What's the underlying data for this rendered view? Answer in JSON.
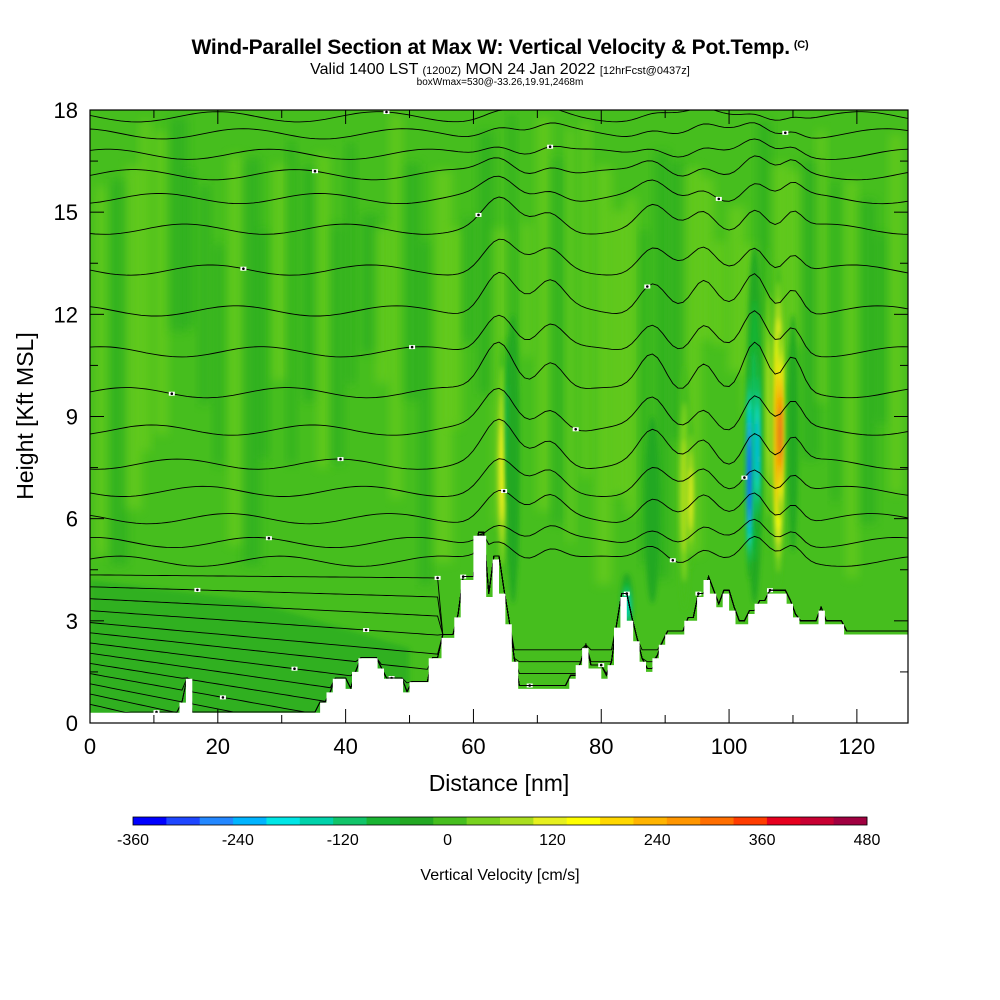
{
  "chart_data": {
    "type": "heatmap",
    "title": "Wind-Parallel Section at Max W: Vertical Velocity & Pot.Temp.",
    "title_mark": "(C)",
    "subtitle_main": "Valid 1400 LST",
    "subtitle_zulu": "(1200Z)",
    "subtitle_date": "MON 24 Jan 2022",
    "subtitle_fcst": "[12hrFcst@0437z]",
    "subtitle2": "boxWmax=530@-33.26,19.91,2468m",
    "xlabel": "Distance [nm]",
    "ylabel": "Height [Kft MSL]",
    "xlim": [
      0,
      128
    ],
    "ylim": [
      0,
      18
    ],
    "xticks": [
      "0",
      "20",
      "40",
      "60",
      "80",
      "100",
      "120"
    ],
    "yticks": [
      "0",
      "3",
      "6",
      "9",
      "12",
      "15",
      "18"
    ],
    "colorbar": {
      "label": "Vertical Velocity [cm/s]",
      "min": -360,
      "max": 480,
      "step": 40,
      "ticks": [
        "-360",
        "-240",
        "-120",
        "0",
        "120",
        "240",
        "360",
        "480"
      ],
      "colors": [
        "#0000ff",
        "#1e46ff",
        "#2387ff",
        "#00b4ff",
        "#00e6e6",
        "#00d2aa",
        "#11c469",
        "#19b432",
        "#23a823",
        "#46be1e",
        "#78d21e",
        "#aade1e",
        "#e6f01e",
        "#ffff00",
        "#ffd700",
        "#ffb400",
        "#ff9600",
        "#ff6e00",
        "#ff3c00",
        "#e6001e",
        "#c80032",
        "#a00040"
      ]
    },
    "terrain_kft": [
      [
        0,
        0.3
      ],
      [
        14,
        0.3
      ],
      [
        14,
        0.6
      ],
      [
        15,
        0.6
      ],
      [
        15,
        1.3
      ],
      [
        16,
        1.3
      ],
      [
        16,
        0.3
      ],
      [
        36,
        0.3
      ],
      [
        36,
        0.6
      ],
      [
        37,
        0.6
      ],
      [
        37,
        0.9
      ],
      [
        38,
        0.9
      ],
      [
        38,
        1.3
      ],
      [
        40,
        1.3
      ],
      [
        40,
        1.0
      ],
      [
        41,
        1.0
      ],
      [
        41,
        1.5
      ],
      [
        42,
        1.5
      ],
      [
        42,
        1.9
      ],
      [
        45,
        1.9
      ],
      [
        45,
        1.6
      ],
      [
        46,
        1.6
      ],
      [
        46,
        1.3
      ],
      [
        49,
        1.3
      ],
      [
        49,
        0.9
      ],
      [
        50,
        0.9
      ],
      [
        50,
        1.2
      ],
      [
        53,
        1.2
      ],
      [
        53,
        1.9
      ],
      [
        55,
        1.9
      ],
      [
        55,
        2.5
      ],
      [
        57,
        2.5
      ],
      [
        57,
        3.1
      ],
      [
        58,
        3.1
      ],
      [
        58,
        4.2
      ],
      [
        60,
        4.2
      ],
      [
        60,
        5.5
      ],
      [
        62,
        5.5
      ],
      [
        62,
        3.7
      ],
      [
        63,
        3.7
      ],
      [
        63,
        4.8
      ],
      [
        64,
        4.8
      ],
      [
        64,
        3.8
      ],
      [
        65,
        3.8
      ],
      [
        65,
        2.9
      ],
      [
        66,
        2.9
      ],
      [
        66,
        1.8
      ],
      [
        67,
        1.8
      ],
      [
        67,
        1.0
      ],
      [
        75,
        1.0
      ],
      [
        75,
        1.3
      ],
      [
        76,
        1.3
      ],
      [
        76,
        1.7
      ],
      [
        77,
        1.7
      ],
      [
        77,
        2.2
      ],
      [
        78,
        2.2
      ],
      [
        78,
        1.6
      ],
      [
        80,
        1.6
      ],
      [
        80,
        1.3
      ],
      [
        81,
        1.3
      ],
      [
        81,
        1.7
      ],
      [
        82,
        1.7
      ],
      [
        82,
        2.8
      ],
      [
        83,
        2.8
      ],
      [
        83,
        3.7
      ],
      [
        84,
        3.7
      ],
      [
        84,
        3.0
      ],
      [
        85,
        3.0
      ],
      [
        85,
        2.4
      ],
      [
        86,
        2.4
      ],
      [
        86,
        1.8
      ],
      [
        87,
        1.8
      ],
      [
        87,
        1.5
      ],
      [
        88,
        1.5
      ],
      [
        88,
        1.9
      ],
      [
        89,
        1.9
      ],
      [
        89,
        2.3
      ],
      [
        90,
        2.3
      ],
      [
        90,
        2.6
      ],
      [
        93,
        2.6
      ],
      [
        93,
        3.0
      ],
      [
        95,
        3.0
      ],
      [
        95,
        3.7
      ],
      [
        96,
        3.7
      ],
      [
        96,
        4.2
      ],
      [
        97,
        4.2
      ],
      [
        97,
        3.8
      ],
      [
        98,
        3.8
      ],
      [
        98,
        3.4
      ],
      [
        99,
        3.4
      ],
      [
        99,
        3.8
      ],
      [
        100,
        3.8
      ],
      [
        100,
        3.3
      ],
      [
        101,
        3.3
      ],
      [
        101,
        2.9
      ],
      [
        103,
        2.9
      ],
      [
        103,
        3.2
      ],
      [
        104,
        3.2
      ],
      [
        104,
        3.5
      ],
      [
        106,
        3.5
      ],
      [
        106,
        3.8
      ],
      [
        109,
        3.8
      ],
      [
        109,
        3.5
      ],
      [
        110,
        3.5
      ],
      [
        110,
        3.1
      ],
      [
        111,
        3.1
      ],
      [
        111,
        2.9
      ],
      [
        114,
        2.9
      ],
      [
        114,
        3.3
      ],
      [
        115,
        3.3
      ],
      [
        115,
        2.9
      ],
      [
        118,
        2.9
      ],
      [
        118,
        2.6
      ],
      [
        128,
        2.6
      ]
    ],
    "w_features": [
      {
        "x": 64.5,
        "top": 11.3,
        "bottom": 4.0,
        "w": 150,
        "hw": 0.9
      },
      {
        "x": 65.6,
        "top": 11.4,
        "bottom": 6.5,
        "w": -100,
        "hw": 0.6
      },
      {
        "x": 66.2,
        "top": 12.0,
        "bottom": 3.5,
        "w": -40,
        "hw": 1.0
      },
      {
        "x": 84.0,
        "top": 4.4,
        "bottom": 2.6,
        "w": -150,
        "hw": 1.0
      },
      {
        "x": 88.0,
        "top": 9.0,
        "bottom": 3.5,
        "w": -40,
        "hw": 1.2
      },
      {
        "x": 93.0,
        "top": 10.5,
        "bottom": 3.3,
        "w": 120,
        "hw": 1.0
      },
      {
        "x": 94.0,
        "top": 9.0,
        "bottom": 4.5,
        "w": 160,
        "hw": 0.6
      },
      {
        "x": 104.0,
        "top": 14.0,
        "bottom": 3.5,
        "w": -120,
        "hw": 1.3
      },
      {
        "x": 103.2,
        "top": 10.8,
        "bottom": 4.2,
        "w": -360,
        "hw": 0.55
      },
      {
        "x": 104.4,
        "top": 11.0,
        "bottom": 5.5,
        "w": -220,
        "hw": 0.5
      },
      {
        "x": 106.2,
        "top": 14.0,
        "bottom": 5.0,
        "w": 120,
        "hw": 0.6
      },
      {
        "x": 107.7,
        "top": 13.5,
        "bottom": 4.0,
        "w": 300,
        "hw": 1.0
      },
      {
        "x": 108.0,
        "top": 11.5,
        "bottom": 6.0,
        "w": 440,
        "hw": 0.55
      },
      {
        "x": 110.0,
        "top": 12.0,
        "bottom": 5.0,
        "w": -40,
        "hw": 0.8
      }
    ],
    "theta_levels_kft": [
      0.55,
      0.85,
      1.15,
      1.45,
      1.75,
      2.05,
      2.35,
      2.65,
      2.95,
      3.3,
      3.65,
      4.0,
      4.35,
      4.75,
      5.3,
      6.0,
      6.8,
      7.6,
      8.6,
      9.7,
      10.9,
      12.1,
      13.3,
      14.5,
      15.4,
      16.1,
      16.7,
      17.3,
      17.8
    ]
  }
}
